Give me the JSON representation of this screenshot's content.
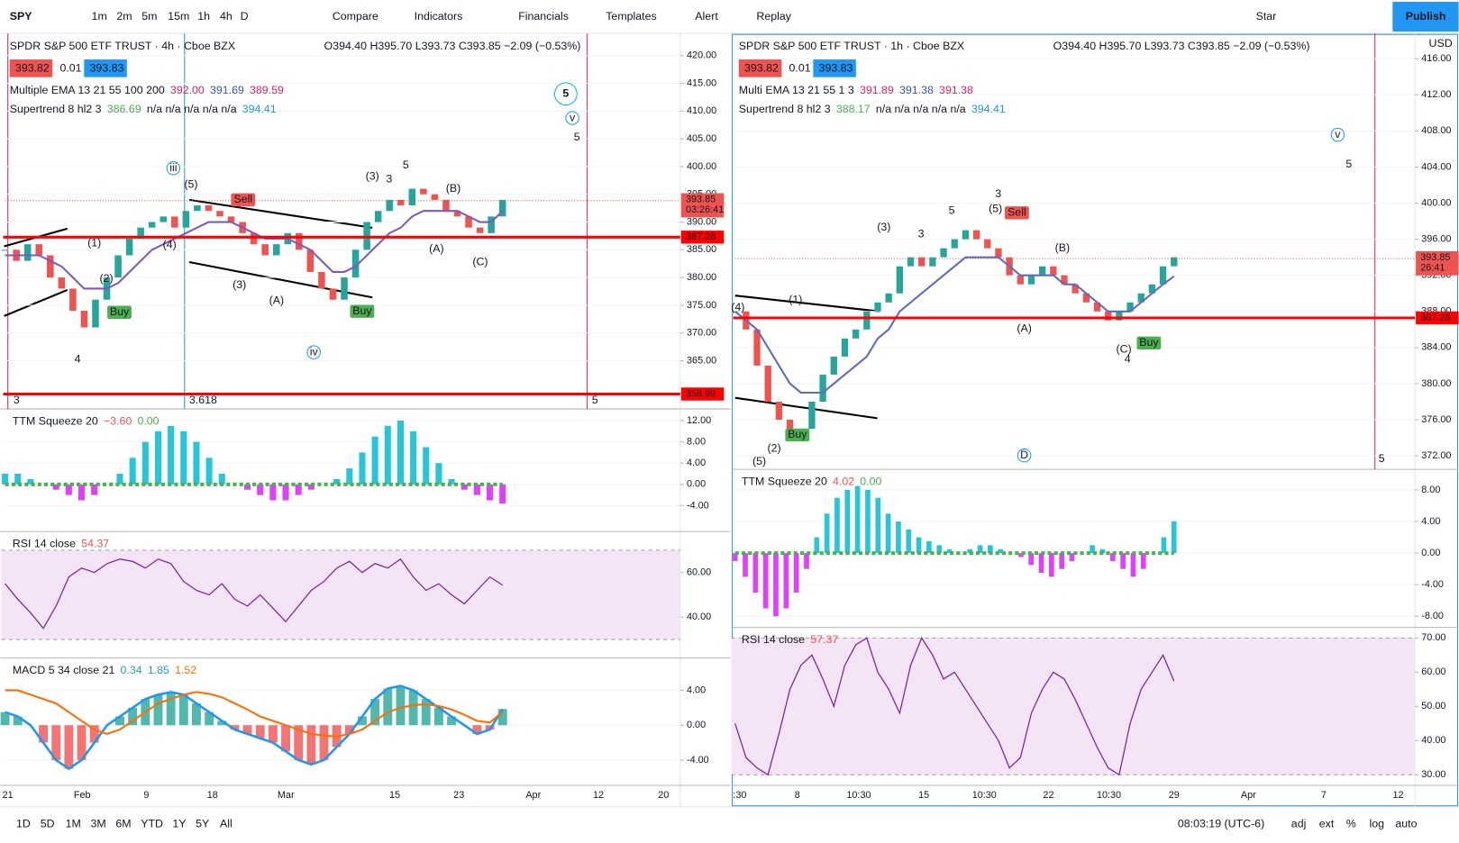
{
  "toolbar": {
    "symbol": "SPY",
    "intervals": [
      "1m",
      "2m",
      "5m",
      "15m",
      "1h",
      "4h",
      "D"
    ],
    "buttons": [
      "Compare",
      "Indicators",
      "Financials",
      "Templates",
      "Alert",
      "Replay"
    ],
    "layout_name": "Star",
    "publish": "Publish"
  },
  "left_chart": {
    "title": "SPDR S&P 500 ETF TRUST · 4h · Cboe BZX",
    "ohlc": "O394.40 H395.70 L393.73 C393.85 −2.09 (−0.53%)",
    "bid": "393.82",
    "spread": "0.01",
    "ask": "393.83",
    "ema_legend": {
      "name": "Multiple EMA 13 21 55 100 200",
      "values": [
        "392.00",
        "391.69",
        "389.59"
      ]
    },
    "supertrend_legend": {
      "name": "Supertrend 8 hl2 3",
      "values": [
        "386.69",
        "n/a n/a n/a n/a n/a",
        "394.41"
      ]
    },
    "price": {
      "type": "candlestick",
      "ylim": [
        356.3,
        424
      ],
      "yticks": [
        {
          "value": 420,
          "label": "420.00"
        },
        {
          "value": 415,
          "label": "415.00"
        },
        {
          "value": 410,
          "label": "410.00"
        },
        {
          "value": 405,
          "label": "405.00"
        },
        {
          "value": 400,
          "label": "400.00"
        },
        {
          "value": 395,
          "label": "395.00"
        },
        {
          "value": 390,
          "label": "390.00"
        },
        {
          "value": 385,
          "label": "385.00"
        },
        {
          "value": 380,
          "label": "380.00"
        },
        {
          "value": 375,
          "label": "375.00"
        },
        {
          "value": 370,
          "label": "370.00"
        },
        {
          "value": 365,
          "label": "365.00"
        }
      ],
      "values": [
        385,
        383,
        386,
        384,
        380,
        378,
        374,
        371,
        376,
        380,
        384,
        387,
        389,
        390,
        391,
        389,
        392,
        393,
        392,
        391,
        390,
        388,
        386,
        384,
        386,
        388,
        385,
        381,
        378,
        376,
        380,
        385,
        390,
        392,
        394,
        393,
        396,
        395,
        394,
        392,
        391,
        389,
        388,
        391,
        394
      ],
      "ema": [
        384,
        384,
        384,
        384,
        383,
        382,
        380,
        378,
        378,
        378,
        379,
        381,
        383,
        385,
        386,
        387,
        388,
        389,
        390,
        390,
        390,
        389,
        388,
        387,
        387,
        387,
        386,
        385,
        383,
        381,
        381,
        382,
        384,
        386,
        388,
        389,
        391,
        392,
        392,
        392,
        392,
        391,
        390,
        390,
        392
      ],
      "ema_color": "#7e57c2",
      "levels": [
        {
          "value": 387.28,
          "label": "387.28"
        },
        {
          "value": 358.99,
          "label": "358.99"
        }
      ],
      "last_price": {
        "value": 393.85,
        "label": "393.85",
        "countdown": "03:26:41"
      },
      "annotations": [
        "5",
        "v",
        "5",
        "iii",
        "iv",
        "Sell",
        "Buy",
        "Buy",
        "(1)",
        "(2)",
        "(3)",
        "(4)",
        "(5)",
        "(A)",
        "(3)",
        "3",
        "5",
        "(B)",
        "(A)",
        "(C)",
        "4",
        "3",
        "3.618",
        "5"
      ]
    },
    "ttm": {
      "type": "histogram",
      "legend": {
        "name": "TTM Squeeze 20",
        "values": [
          "−3.60",
          "0.00"
        ]
      },
      "ylim": [
        -8.9,
        14.2
      ],
      "yticks": [
        {
          "value": 12,
          "label": "12.00"
        },
        {
          "value": 8,
          "label": "8.00"
        },
        {
          "value": 4,
          "label": "4.00"
        },
        {
          "value": 0,
          "label": "0.00"
        },
        {
          "value": -4,
          "label": "-4.00"
        }
      ],
      "values": [
        2,
        2,
        1,
        0,
        -1,
        -2,
        -3,
        -2,
        0,
        2,
        5,
        8,
        10,
        11,
        10,
        8,
        5,
        2,
        0,
        -1,
        -2,
        -3,
        -3,
        -2,
        -1,
        0,
        1,
        3,
        6,
        9,
        11,
        12,
        10,
        7,
        4,
        1,
        -1,
        -2,
        -3,
        -3.6
      ]
    },
    "rsi": {
      "type": "line",
      "legend": {
        "name": "RSI 14 close",
        "values": [
          "54.37"
        ]
      },
      "ylim": [
        21.7,
        78.3
      ],
      "band": [
        30,
        70
      ],
      "yticks": [
        {
          "value": 60,
          "label": "60.00"
        },
        {
          "value": 40,
          "label": "40.00"
        }
      ],
      "values": [
        55,
        48,
        42,
        35,
        45,
        58,
        62,
        60,
        64,
        66,
        65,
        62,
        66,
        64,
        56,
        52,
        50,
        55,
        48,
        45,
        50,
        44,
        38,
        45,
        52,
        56,
        62,
        65,
        60,
        64,
        62,
        66,
        58,
        52,
        55,
        50,
        46,
        52,
        58,
        54.37
      ]
    },
    "macd": {
      "type": "macd",
      "legend": {
        "name": "MACD 5 34 close 21",
        "values": [
          "0.34",
          "1.85",
          "1.52"
        ]
      },
      "ylim": [
        -6.9,
        7.7
      ],
      "yticks": [
        {
          "value": 4,
          "label": "4.00"
        },
        {
          "value": 0,
          "label": "0.00"
        },
        {
          "value": -4,
          "label": "-4.00"
        }
      ],
      "values": [
        1.5,
        1,
        0,
        -2,
        -4,
        -5,
        -4,
        -2,
        0,
        1,
        2,
        3,
        3.5,
        3.8,
        3.5,
        2.5,
        1.5,
        0.5,
        -0.5,
        -1,
        -1.5,
        -2,
        -3,
        -4,
        -4.5,
        -4,
        -2.5,
        -1,
        1,
        3,
        4.2,
        4.5,
        4,
        3,
        2,
        1,
        0,
        -1,
        -0.5,
        1.85
      ],
      "signal": [
        4,
        4,
        3.5,
        3,
        2.5,
        1.5,
        0.5,
        -0.5,
        -1,
        -0.5,
        0.5,
        1.5,
        2.5,
        3,
        3.5,
        3.8,
        3.6,
        3.2,
        2.5,
        1.8,
        1,
        0.5,
        0,
        -0.5,
        -1,
        -1.2,
        -1.3,
        -1,
        -0.5,
        0.5,
        1.5,
        2,
        2.3,
        2.4,
        2.2,
        1.8,
        1.2,
        0.5,
        0.3,
        1.52
      ]
    },
    "xticks": [
      "21",
      "Feb",
      "9",
      "18",
      "Mar",
      "15",
      "23",
      "Apr",
      "12",
      "20"
    ]
  },
  "right_chart": {
    "title": "SPDR S&P 500 ETF TRUST · 1h · Cboe BZX",
    "ohlc": "O394.40 H395.70 L393.73 C393.85 −2.09 (−0.53%)",
    "bid": "393.82",
    "spread": "0.01",
    "ask": "393.83",
    "currency": "USD",
    "ema_legend": {
      "name": "Multi EMA 13 21 55 1 3",
      "values": [
        "391.89",
        "391.38",
        "391.38"
      ]
    },
    "supertrend_legend": {
      "name": "Supertrend 8 hl2 3",
      "values": [
        "388.17",
        "n/a n/a n/a n/a n/a",
        "394.41"
      ]
    },
    "price": {
      "type": "candlestick",
      "ylim": [
        370.5,
        418.8
      ],
      "yticks": [
        {
          "value": 416,
          "label": "416.00"
        },
        {
          "value": 412,
          "label": "412.00"
        },
        {
          "value": 408,
          "label": "408.00"
        },
        {
          "value": 404,
          "label": "404.00"
        },
        {
          "value": 400,
          "label": "400.00"
        },
        {
          "value": 396,
          "label": "396.00"
        },
        {
          "value": 392,
          "label": "392.00"
        },
        {
          "value": 388,
          "label": "388.00"
        },
        {
          "value": 384,
          "label": "384.00"
        },
        {
          "value": 380,
          "label": "380.00"
        },
        {
          "value": 376,
          "label": "376.00"
        },
        {
          "value": 372,
          "label": "372.00"
        }
      ],
      "values": [
        388,
        386,
        382,
        378,
        376,
        374,
        375,
        378,
        381,
        383,
        385,
        386,
        388,
        389,
        390,
        393,
        394,
        393,
        394,
        395,
        396,
        397,
        396,
        395,
        394,
        392,
        391,
        392,
        393,
        392,
        391,
        390,
        389,
        388,
        387,
        388,
        389,
        390,
        391,
        393,
        394
      ],
      "ema": [
        388,
        387,
        386,
        384,
        382,
        380,
        379,
        379,
        379,
        380,
        381,
        382,
        383,
        385,
        386,
        388,
        389,
        390,
        391,
        392,
        393,
        394,
        394,
        394,
        394,
        393,
        392,
        392,
        392,
        392,
        391,
        391,
        390,
        389,
        388,
        388,
        388,
        389,
        390,
        391,
        391.89
      ],
      "ema_color": "#5c6bc0",
      "levels": [
        {
          "value": 387.28,
          "label": "387.28"
        }
      ],
      "last_price": {
        "value": 393.85,
        "label": "393.85",
        "countdown": "26:41"
      },
      "annotations": [
        "v",
        "5",
        "3",
        "(5)",
        "Sell",
        "5",
        "3",
        "(3)",
        "(B)",
        "(A)",
        "(C)",
        "4",
        "Buy",
        "Buy",
        "(2)",
        "(5)",
        "D",
        "5",
        "(4)",
        "(1)"
      ]
    },
    "ttm": {
      "type": "histogram",
      "legend": {
        "name": "TTM Squeeze 20",
        "values": [
          "4.02",
          "0.00"
        ]
      },
      "ylim": [
        -9.4,
        10.6
      ],
      "yticks": [
        {
          "value": 8,
          "label": "8.00"
        },
        {
          "value": 4,
          "label": "4.00"
        },
        {
          "value": 0,
          "label": "0.00"
        },
        {
          "value": -4,
          "label": "-4.00"
        },
        {
          "value": -8,
          "label": "-8.00"
        }
      ],
      "values": [
        -1,
        -3,
        -5,
        -7,
        -8,
        -7,
        -5,
        -2,
        2,
        5,
        7,
        8,
        8.5,
        8,
        7,
        5,
        4,
        3,
        2,
        1.5,
        1,
        0.5,
        0,
        0.5,
        1,
        1,
        0.5,
        0,
        -0.5,
        -1.5,
        -2.5,
        -3,
        -2,
        -1,
        0,
        1,
        0.5,
        -1,
        -2,
        -3,
        -2,
        0,
        2,
        4.02
      ]
    },
    "rsi": {
      "type": "line",
      "legend": {
        "name": "RSI 14 close",
        "values": [
          "57.37"
        ]
      },
      "ylim": [
        26.9,
        73.1
      ],
      "band": [
        30,
        70
      ],
      "yticks": [
        {
          "value": 70,
          "label": "70.00"
        },
        {
          "value": 60,
          "label": "60.00"
        },
        {
          "value": 50,
          "label": "50.00"
        },
        {
          "value": 40,
          "label": "40.00"
        },
        {
          "value": 30,
          "label": "30.00"
        }
      ],
      "values": [
        45,
        35,
        32,
        30,
        42,
        55,
        62,
        65,
        58,
        50,
        62,
        68,
        70,
        60,
        55,
        48,
        62,
        70,
        65,
        58,
        60,
        55,
        50,
        45,
        40,
        32,
        35,
        48,
        55,
        60,
        58,
        52,
        45,
        38,
        32,
        30,
        45,
        55,
        60,
        65,
        57.37
      ]
    },
    "xticks": [
      ":30",
      "8",
      "10:30",
      "15",
      "10:30",
      "22",
      "10:30",
      "29",
      "Apr",
      "7",
      "12"
    ]
  },
  "bottom_bar": {
    "ranges": [
      "1D",
      "5D",
      "1M",
      "3M",
      "6M",
      "YTD",
      "1Y",
      "5Y",
      "All"
    ],
    "clock": "08:03:19 (UTC-6)",
    "options": [
      "adj",
      "ext",
      "%",
      "log",
      "auto"
    ]
  }
}
